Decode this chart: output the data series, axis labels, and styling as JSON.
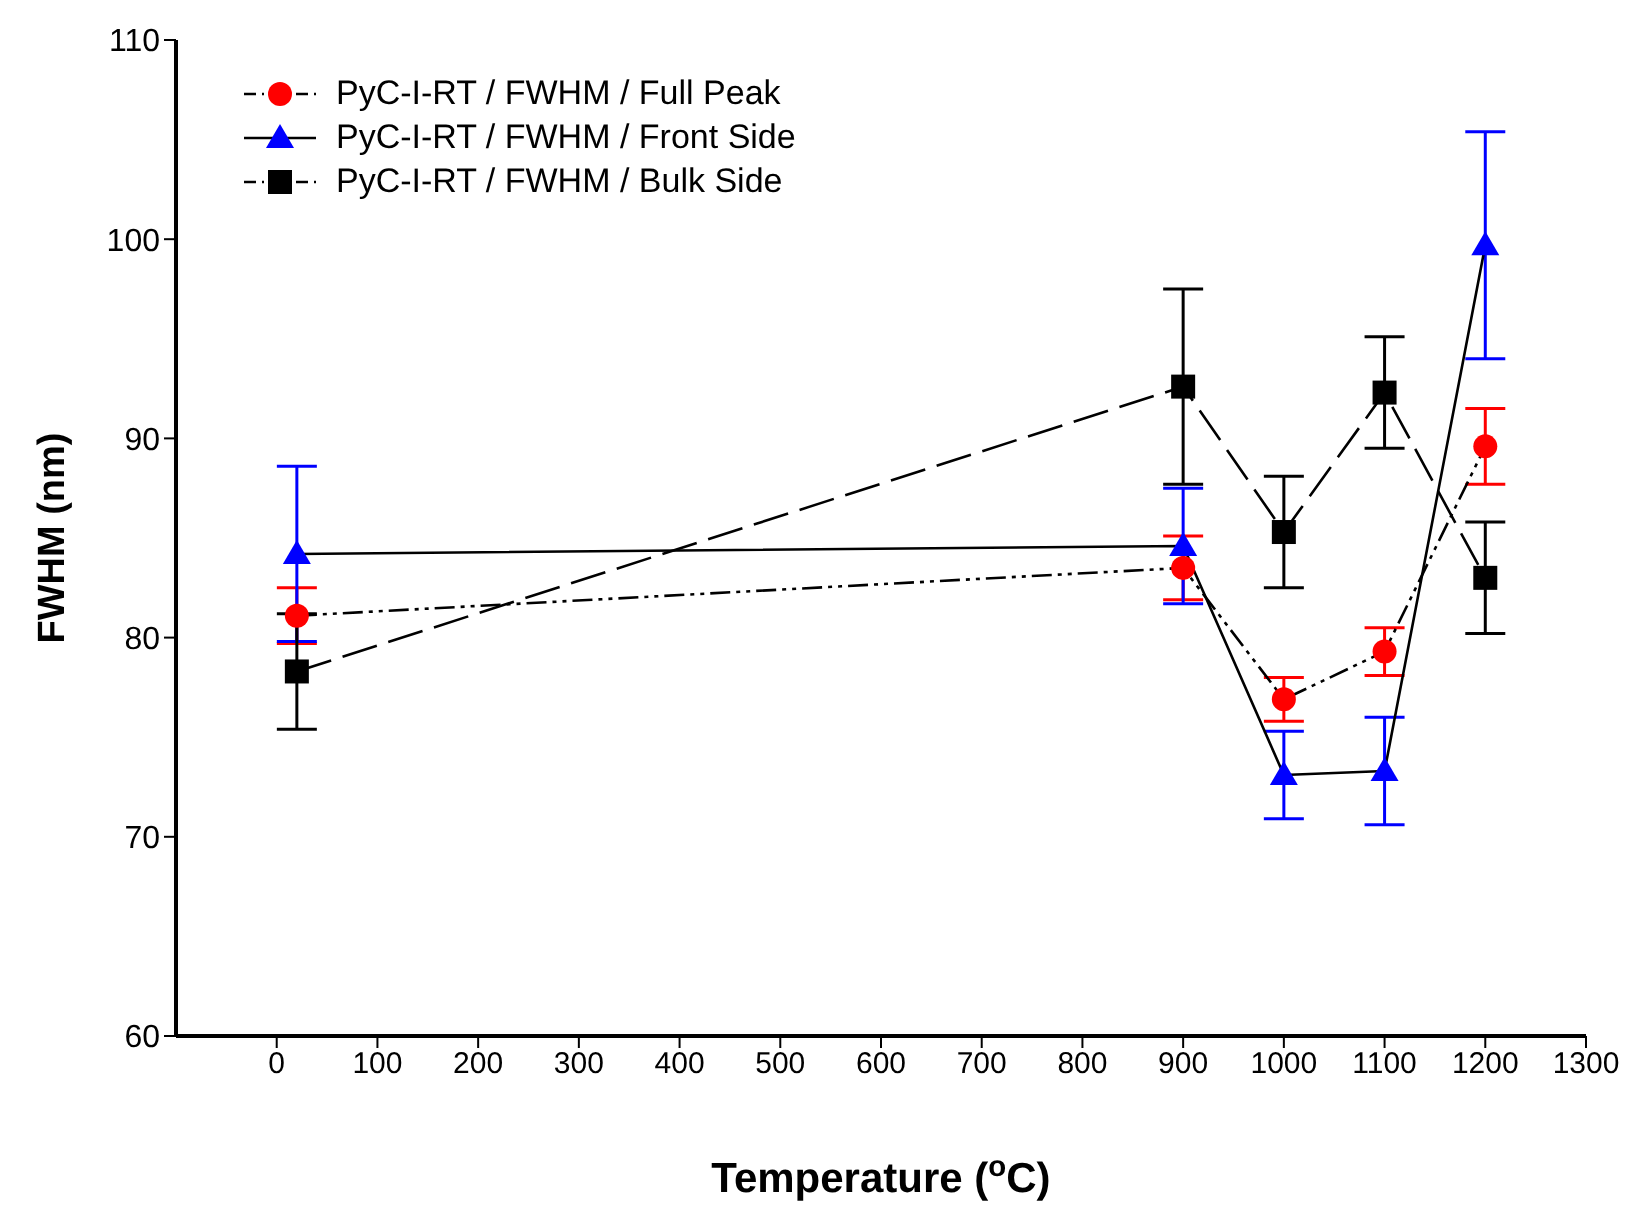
{
  "chart_data": {
    "type": "line",
    "xlabel": "Temperature ($^{o}$C)",
    "ylabel": "FWHM (nm)",
    "x": [
      20,
      900,
      1000,
      1100,
      1200
    ],
    "series": [
      {
        "name": "PyC-I-RT / FWHM / Full Peak",
        "color": "#ff0000",
        "marker": "circle",
        "line_style": "dotted",
        "values": [
          81.1,
          83.5,
          76.9,
          79.3,
          89.6
        ],
        "errors": [
          1.4,
          1.6,
          1.1,
          1.2,
          1.9
        ]
      },
      {
        "name": "PyC-I-RT / FWHM / Front Side",
        "color": "#0000ff",
        "marker": "triangle",
        "line_style": "solid",
        "values": [
          84.2,
          84.6,
          73.1,
          73.3,
          99.7
        ],
        "errors": [
          4.4,
          2.9,
          2.2,
          2.7,
          5.7
        ]
      },
      {
        "name": "PyC-I-RT / FWHM / Bulk Side",
        "color": "#000000",
        "marker": "square",
        "line_style": "dashed",
        "values": [
          78.3,
          92.6,
          85.3,
          92.3,
          83.0
        ],
        "errors": [
          2.9,
          4.9,
          2.8,
          2.8,
          2.8
        ]
      }
    ],
    "xlim": [
      -100,
      1300
    ],
    "xticks": [
      0,
      100,
      200,
      300,
      400,
      500,
      600,
      700,
      800,
      900,
      1000,
      1100,
      1200,
      1300
    ],
    "ylim": [
      60,
      110
    ],
    "yticks": [
      60,
      70,
      80,
      90,
      100,
      110
    ],
    "grid": false,
    "legend": "top left"
  }
}
